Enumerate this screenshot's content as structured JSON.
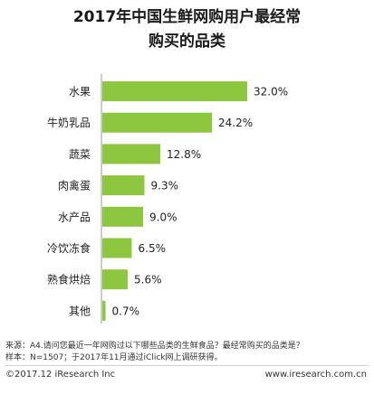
{
  "title_line1": "2017年中国生鲜网购用户最经常",
  "title_line2": "购买的品类",
  "chart_data": {
    "type": "bar",
    "orientation": "horizontal",
    "categories": [
      "水果",
      "牛奶乳品",
      "蔬菜",
      "肉禽蛋",
      "水产品",
      "冷饮冻食",
      "熟食烘焙",
      "其他"
    ],
    "values": [
      32.0,
      24.2,
      12.8,
      9.3,
      9.0,
      6.5,
      5.6,
      0.7
    ],
    "value_labels": [
      "32.0%",
      "24.2%",
      "12.8%",
      "9.3%",
      "9.0%",
      "6.5%",
      "5.6%",
      "0.7%"
    ],
    "bar_color": "#8dc63f",
    "xlim": [
      0,
      32
    ],
    "grid": false
  },
  "notes": {
    "source": "来源：A4.请问您最近一年网购过以下哪些品类的生鲜食品？最经常购买的品类是？",
    "sample": "样本：N=1507；于2017年11月通过iClick网上调研获得。"
  },
  "footer": {
    "left": "©2017.12 iResearch Inc",
    "right": "www.iresearch.com.cn"
  }
}
